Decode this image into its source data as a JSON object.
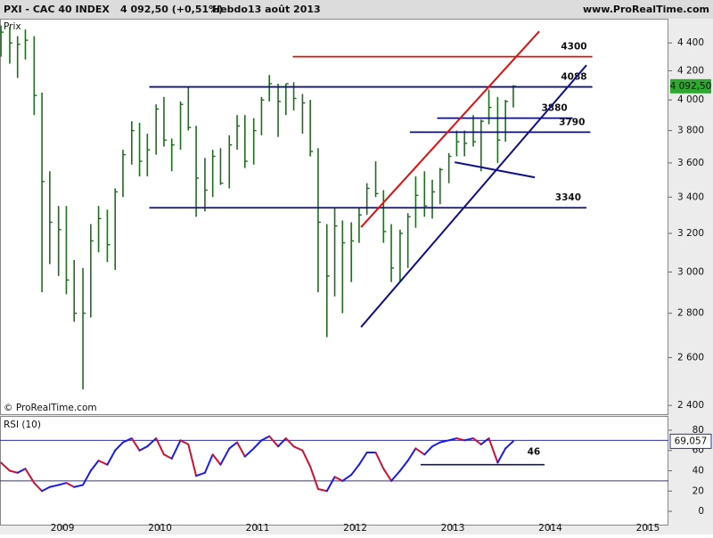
{
  "header": {
    "symbol": "PXI - CAC 40 INDEX",
    "quote": "4 092,50 (+0,51%)",
    "period": "Hebdo",
    "date": "13 août 2013",
    "site": "www.ProRealTime.com"
  },
  "chart_data": [
    {
      "type": "ohlc",
      "y_label": "Prix",
      "footer": "© ProRealTime.com",
      "color": "#1e6e1e",
      "log": true,
      "xlim": [
        2008.36,
        2015.21
      ],
      "ylim": [
        2365,
        4575
      ],
      "yticks": [
        {
          "value": 2400,
          "label": "2 400"
        },
        {
          "value": 2600,
          "label": "2 600"
        },
        {
          "value": 2800,
          "label": "2 800"
        },
        {
          "value": 3000,
          "label": "3 000"
        },
        {
          "value": 3200,
          "label": "3 200"
        },
        {
          "value": 3400,
          "label": "3 400"
        },
        {
          "value": 3600,
          "label": "3 600"
        },
        {
          "value": 3800,
          "label": "3 800"
        },
        {
          "value": 4000,
          "label": "4 000"
        },
        {
          "value": 4200,
          "label": "4 200"
        },
        {
          "value": 4400,
          "label": "4 400"
        }
      ],
      "x": [
        2008.37,
        2008.46,
        2008.54,
        2008.62,
        2008.71,
        2008.79,
        2008.87,
        2008.96,
        2009.04,
        2009.12,
        2009.21,
        2009.29,
        2009.37,
        2009.46,
        2009.54,
        2009.62,
        2009.71,
        2009.79,
        2009.87,
        2009.96,
        2010.04,
        2010.12,
        2010.21,
        2010.29,
        2010.37,
        2010.46,
        2010.54,
        2010.62,
        2010.71,
        2010.79,
        2010.87,
        2010.96,
        2011.04,
        2011.12,
        2011.21,
        2011.29,
        2011.37,
        2011.46,
        2011.54,
        2011.62,
        2011.71,
        2011.79,
        2011.87,
        2011.96,
        2012.04,
        2012.12,
        2012.21,
        2012.29,
        2012.37,
        2012.46,
        2012.54,
        2012.62,
        2012.71,
        2012.79,
        2012.87,
        2012.96,
        2013.04,
        2013.12,
        2013.21,
        2013.29,
        2013.37,
        2013.46,
        2013.54,
        2013.62
      ],
      "high": [
        4530,
        4520,
        4450,
        4500,
        4450,
        4050,
        3550,
        3350,
        3350,
        3060,
        3020,
        3250,
        3350,
        3330,
        3450,
        3680,
        3860,
        3850,
        3780,
        3970,
        4020,
        3750,
        3990,
        4090,
        3830,
        3630,
        3680,
        3690,
        3770,
        3900,
        3900,
        3880,
        4020,
        4170,
        4110,
        4110,
        4120,
        4040,
        4000,
        3690,
        3250,
        3340,
        3270,
        3260,
        3340,
        3480,
        3610,
        3440,
        3250,
        3220,
        3310,
        3520,
        3550,
        3500,
        3570,
        3660,
        3800,
        3800,
        3900,
        3870,
        4070,
        4020,
        4000,
        4100
      ],
      "low": [
        4300,
        4250,
        4150,
        4280,
        3900,
        2900,
        3040,
        2980,
        2890,
        2760,
        2465,
        2780,
        3100,
        3050,
        3010,
        3400,
        3590,
        3520,
        3520,
        3650,
        3700,
        3550,
        3680,
        3800,
        3290,
        3320,
        3400,
        3470,
        3450,
        3680,
        3570,
        3590,
        3770,
        3990,
        3760,
        3900,
        3930,
        3780,
        3640,
        2900,
        2690,
        2880,
        2800,
        2950,
        3150,
        3300,
        3400,
        3150,
        2950,
        2950,
        3020,
        3230,
        3290,
        3280,
        3360,
        3480,
        3640,
        3640,
        3700,
        3550,
        3840,
        3600,
        3730,
        3950
      ],
      "close": [
        4480,
        4400,
        4390,
        4420,
        4030,
        3490,
        3260,
        3220,
        2960,
        2800,
        2800,
        3160,
        3280,
        3140,
        3430,
        3650,
        3800,
        3610,
        3680,
        3940,
        3740,
        3710,
        3970,
        3820,
        3510,
        3440,
        3640,
        3480,
        3710,
        3830,
        3610,
        3800,
        4000,
        4110,
        3990,
        4110,
        4010,
        3980,
        3670,
        3260,
        2980,
        3240,
        3150,
        3160,
        3300,
        3450,
        3420,
        3210,
        3020,
        3200,
        3290,
        3410,
        3350,
        3430,
        3560,
        3640,
        3730,
        3720,
        3730,
        3860,
        3950,
        3740,
        3990,
        4092.5
      ],
      "last_label": "4 092,50",
      "last_label_color": "#2ea82e",
      "levels": [
        {
          "value": 4300,
          "x": [
            2011.36,
            2014.43
          ],
          "color": "#e01010"
        },
        {
          "value": 4088,
          "x": [
            2009.89,
            2014.43
          ],
          "color": "#10107a"
        },
        {
          "value": 3880,
          "x": [
            2012.84,
            2014.23
          ],
          "color": "#10107a"
        },
        {
          "value": 3790,
          "x": [
            2012.56,
            2014.41
          ],
          "color": "#10107a"
        },
        {
          "value": 3340,
          "x": [
            2009.89,
            2014.37
          ],
          "color": "#10107a"
        }
      ],
      "trendlines": [
        {
          "x": [
            2012.06,
            2013.886
          ],
          "y": [
            3233,
            4486
          ],
          "color": "#e01010"
        },
        {
          "x": [
            2012.06,
            2014.37
          ],
          "y": [
            2736,
            4239
          ],
          "color": "#10108a"
        },
        {
          "x": [
            2013.02,
            2013.84
          ],
          "y": [
            3604,
            3514
          ],
          "color": "#10108a"
        }
      ]
    },
    {
      "type": "rsi",
      "title": "RSI (10)",
      "up_color": "#1a1aee",
      "down_color": "#d01030",
      "xlim": [
        2008.36,
        2015.21
      ],
      "ylim": [
        -14,
        94
      ],
      "yticks": [
        0,
        20,
        40,
        60,
        80
      ],
      "xticks": [
        2009,
        2010,
        2011,
        2012,
        2013,
        2014,
        2015
      ],
      "bands": [
        30,
        70
      ],
      "band_color": "#3030a0",
      "x": [
        2008.37,
        2008.46,
        2008.54,
        2008.62,
        2008.71,
        2008.79,
        2008.87,
        2008.96,
        2009.04,
        2009.12,
        2009.21,
        2009.29,
        2009.37,
        2009.46,
        2009.54,
        2009.62,
        2009.71,
        2009.79,
        2009.87,
        2009.96,
        2010.04,
        2010.12,
        2010.21,
        2010.29,
        2010.37,
        2010.46,
        2010.54,
        2010.62,
        2010.71,
        2010.79,
        2010.87,
        2010.96,
        2011.04,
        2011.12,
        2011.21,
        2011.29,
        2011.37,
        2011.46,
        2011.54,
        2011.62,
        2011.71,
        2011.79,
        2011.87,
        2011.96,
        2012.04,
        2012.12,
        2012.21,
        2012.29,
        2012.37,
        2012.46,
        2012.54,
        2012.62,
        2012.71,
        2012.79,
        2012.87,
        2012.96,
        2013.04,
        2013.12,
        2013.21,
        2013.29,
        2013.37,
        2013.46,
        2013.54,
        2013.62
      ],
      "values": [
        48,
        40,
        38,
        42,
        28,
        20,
        24,
        26,
        28,
        24,
        26,
        40,
        50,
        46,
        60,
        68,
        72,
        60,
        64,
        72,
        56,
        52,
        70,
        66,
        35,
        38,
        56,
        46,
        62,
        68,
        54,
        62,
        70,
        74,
        64,
        72,
        64,
        60,
        44,
        22,
        20,
        34,
        30,
        36,
        46,
        58,
        58,
        42,
        30,
        40,
        50,
        62,
        56,
        64,
        68,
        70,
        72,
        70,
        72,
        66,
        72,
        48,
        62,
        69.057
      ],
      "last_label": "69,057",
      "level": {
        "value": 46,
        "x": [
          2012.67,
          2013.94
        ],
        "color": "#10107a"
      }
    }
  ]
}
